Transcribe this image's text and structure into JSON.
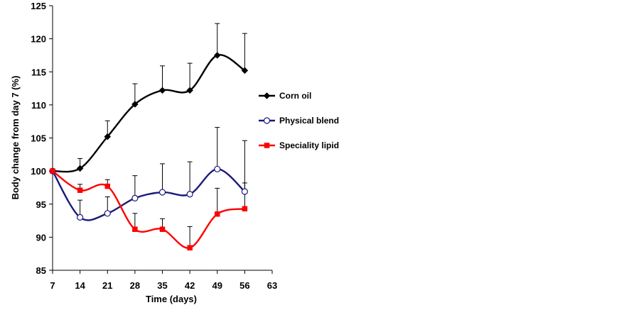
{
  "chart_data": {
    "type": "line",
    "xlabel": "Time (days)",
    "ylabel": "Body change from day 7 (%)",
    "xlim": [
      7,
      63
    ],
    "ylim": [
      85,
      125
    ],
    "xticks": [
      7,
      14,
      21,
      28,
      35,
      42,
      49,
      56,
      63
    ],
    "yticks": [
      85,
      90,
      95,
      100,
      105,
      110,
      115,
      120,
      125
    ],
    "grid": false,
    "legend_position": "right",
    "error_bars": "upper",
    "series": [
      {
        "name": "Corn oil",
        "color": "#000000",
        "marker": "diamond-filled",
        "x": [
          7,
          14,
          21,
          28,
          35,
          42,
          49,
          56
        ],
        "y": [
          100,
          100.4,
          105.2,
          110.1,
          112.2,
          112.2,
          117.5,
          115.2
        ],
        "error": [
          0,
          1.5,
          2.4,
          3.1,
          3.7,
          4.1,
          4.8,
          5.6
        ]
      },
      {
        "name": "Physical blend",
        "color": "#1a1a7a",
        "marker": "circle-open",
        "x": [
          7,
          14,
          21,
          28,
          35,
          42,
          49,
          56
        ],
        "y": [
          100,
          93,
          93.6,
          95.9,
          96.8,
          96.5,
          100.3,
          96.9
        ],
        "error": [
          0,
          2.6,
          2.5,
          3.4,
          4.3,
          4.9,
          6.3,
          7.7
        ]
      },
      {
        "name": "Speciality lipid",
        "color": "#ff0000",
        "marker": "square-filled",
        "x": [
          7,
          14,
          21,
          28,
          35,
          42,
          49,
          56
        ],
        "y": [
          100,
          97.1,
          97.7,
          91.2,
          91.2,
          88.4,
          93.5,
          94.3
        ],
        "error": [
          0,
          0.9,
          1,
          2.4,
          1.6,
          3.2,
          3.9,
          3.9
        ]
      }
    ]
  }
}
